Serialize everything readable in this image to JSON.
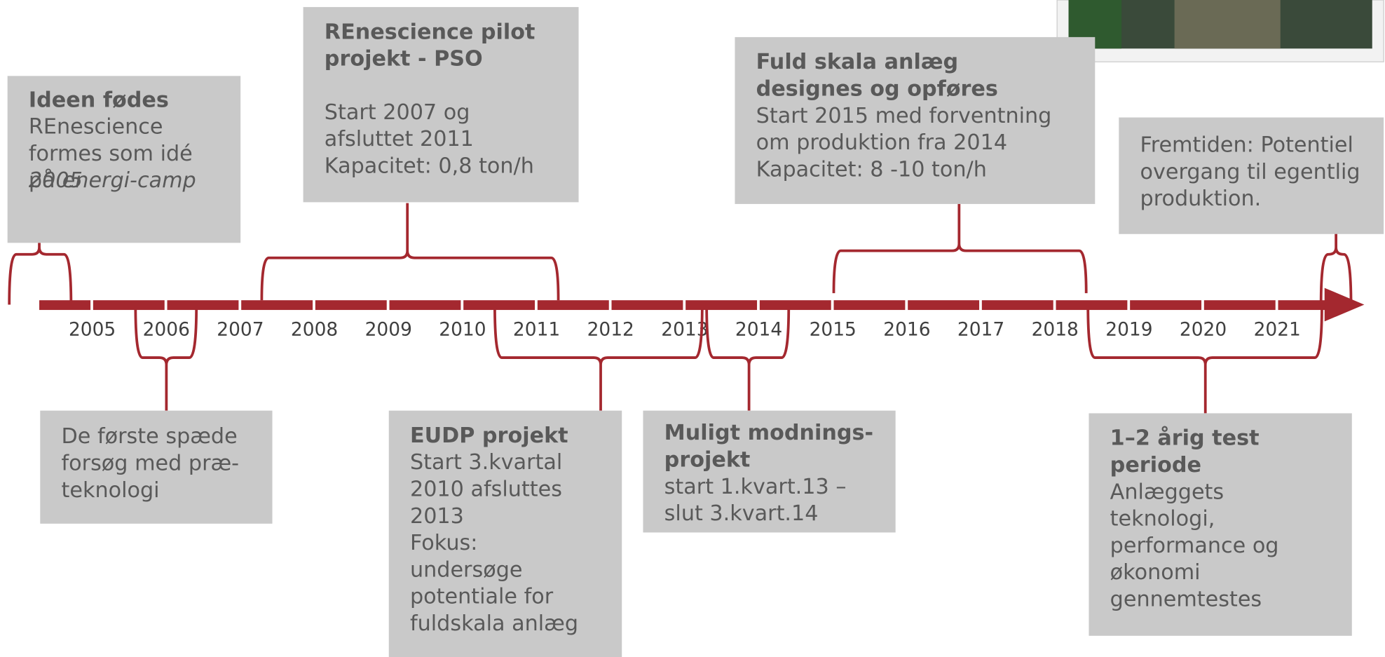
{
  "timeline": {
    "years": [
      "2005",
      "2006",
      "2007",
      "2008",
      "2009",
      "2010",
      "2011",
      "2012",
      "2013",
      "2014",
      "2015",
      "2016",
      "2017",
      "2018",
      "2019",
      "2020",
      "2021"
    ]
  },
  "boxes": [
    {
      "title": [
        "Ideen fødes"
      ],
      "lines": [
        "REnescience",
        "formes som idé",
        "på"
      ],
      "italic_lines": [
        "energi-camp",
        "2005"
      ]
    },
    {
      "title": [
        "REnescience pilot",
        "projekt - PSO"
      ],
      "lines": [
        "Start 2007 og",
        "afsluttet 2011",
        "Kapacitet: 0,8 ton/h"
      ]
    },
    {
      "title": [
        "Fuld skala anlæg",
        "designes og opføres"
      ],
      "lines": [
        "Start 2015 med forventning",
        "om produktion fra 2014",
        "Kapacitet: 8 -10 ton/h"
      ]
    },
    {
      "title": [],
      "lines": [
        "Fremtiden: Potentiel",
        "overgang til egentlig",
        "produktion."
      ]
    },
    {
      "title": [],
      "lines": [
        "De første spæde",
        "forsøg med præ-",
        "teknologi"
      ]
    },
    {
      "title": [
        "EUDP projekt"
      ],
      "lines": [
        "Start 3.kvartal",
        "2010 afsluttes",
        "2013",
        "Fokus:",
        "undersøge",
        "potentiale for",
        "fuldskala anlæg"
      ]
    },
    {
      "title": [
        "Muligt modnings-",
        "projekt"
      ],
      "lines": [
        "start 1.kvart.13 –",
        "slut 3.kvart.14"
      ]
    },
    {
      "title": [
        "1–2 årig test",
        "periode"
      ],
      "lines": [
        "Anlæggets",
        "teknologi,",
        "performance og",
        "økonomi",
        "gennemtestes"
      ]
    }
  ]
}
